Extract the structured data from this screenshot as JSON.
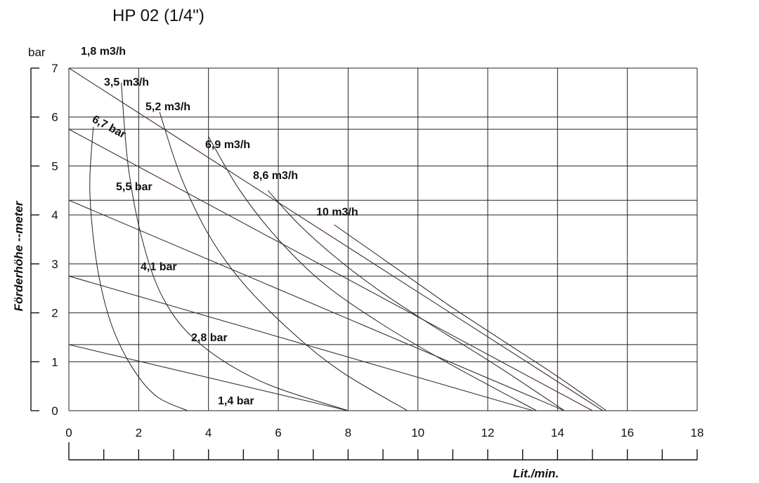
{
  "chart_data": {
    "type": "line",
    "title": "HP 02 (1/4\")",
    "ylabel": "Förderhöhe --meter",
    "y_unit": "bar",
    "xlabel": "Lit./min.",
    "xlim": [
      0,
      18
    ],
    "ylim": [
      0,
      7
    ],
    "x_ticks": [
      "0",
      "2",
      "4",
      "6",
      "8",
      "10",
      "12",
      "14",
      "16",
      "18"
    ],
    "y_ticks": [
      "0",
      "1",
      "2",
      "3",
      "4",
      "5",
      "6",
      "7"
    ],
    "pressure_lines": [
      {
        "name": "6,7 bar",
        "x": [
          0,
          15.3
        ],
        "y": [
          7.0,
          0
        ]
      },
      {
        "name": "5,5 bar",
        "x": [
          0,
          15.0
        ],
        "y": [
          5.75,
          0
        ]
      },
      {
        "name": "4,1 bar",
        "x": [
          0,
          14.2
        ],
        "y": [
          4.3,
          0
        ]
      },
      {
        "name": "2,8 bar",
        "x": [
          0,
          13.3
        ],
        "y": [
          2.75,
          0
        ]
      },
      {
        "name": "1,4 bar",
        "x": [
          0,
          8.0
        ],
        "y": [
          1.35,
          0
        ]
      }
    ],
    "air_consumption_curves": [
      {
        "name": "1,8 m3/h",
        "x": [
          0.7,
          0.6,
          0.8,
          1.2,
          1.8,
          2.5,
          3.4
        ],
        "y": [
          5.8,
          4.5,
          3.0,
          1.8,
          0.9,
          0.3,
          0
        ]
      },
      {
        "name": "3,5 m3/h",
        "x": [
          1.5,
          1.7,
          2.1,
          2.7,
          3.7,
          5.5,
          8.0
        ],
        "y": [
          6.7,
          5.0,
          3.5,
          2.3,
          1.4,
          0.6,
          0
        ]
      },
      {
        "name": "5,2 m3/h",
        "x": [
          2.6,
          3.2,
          4.0,
          5.0,
          6.4,
          7.8,
          9.7
        ],
        "y": [
          6.1,
          4.8,
          3.6,
          2.6,
          1.6,
          0.8,
          0
        ]
      },
      {
        "name": "6,9 m3/h",
        "x": [
          4.0,
          4.9,
          6.0,
          7.3,
          8.9,
          10.8,
          13.4
        ],
        "y": [
          5.6,
          4.5,
          3.5,
          2.6,
          1.8,
          1.0,
          0
        ]
      },
      {
        "name": "8,6 m3/h",
        "x": [
          5.7,
          6.6,
          7.7,
          9.0,
          10.5,
          12.3,
          14.2
        ],
        "y": [
          4.5,
          3.8,
          3.1,
          2.4,
          1.7,
          0.9,
          0
        ]
      },
      {
        "name": "10 m3/h",
        "x": [
          7.6,
          8.6,
          9.8,
          11.0,
          12.5,
          14.0,
          15.4
        ],
        "y": [
          3.8,
          3.3,
          2.7,
          2.1,
          1.4,
          0.7,
          0
        ]
      }
    ],
    "flow_label_texts": [
      "1,8 m3/h",
      "3,5 m3/h",
      "5,2 m3/h",
      "6,9 m3/h",
      "8,6 m3/h",
      "10 m3/h"
    ],
    "pressure_label_texts": [
      "6,7 bar",
      "5,5 bar",
      "4,1 bar",
      "2,8 bar",
      "1,4 bar"
    ]
  }
}
